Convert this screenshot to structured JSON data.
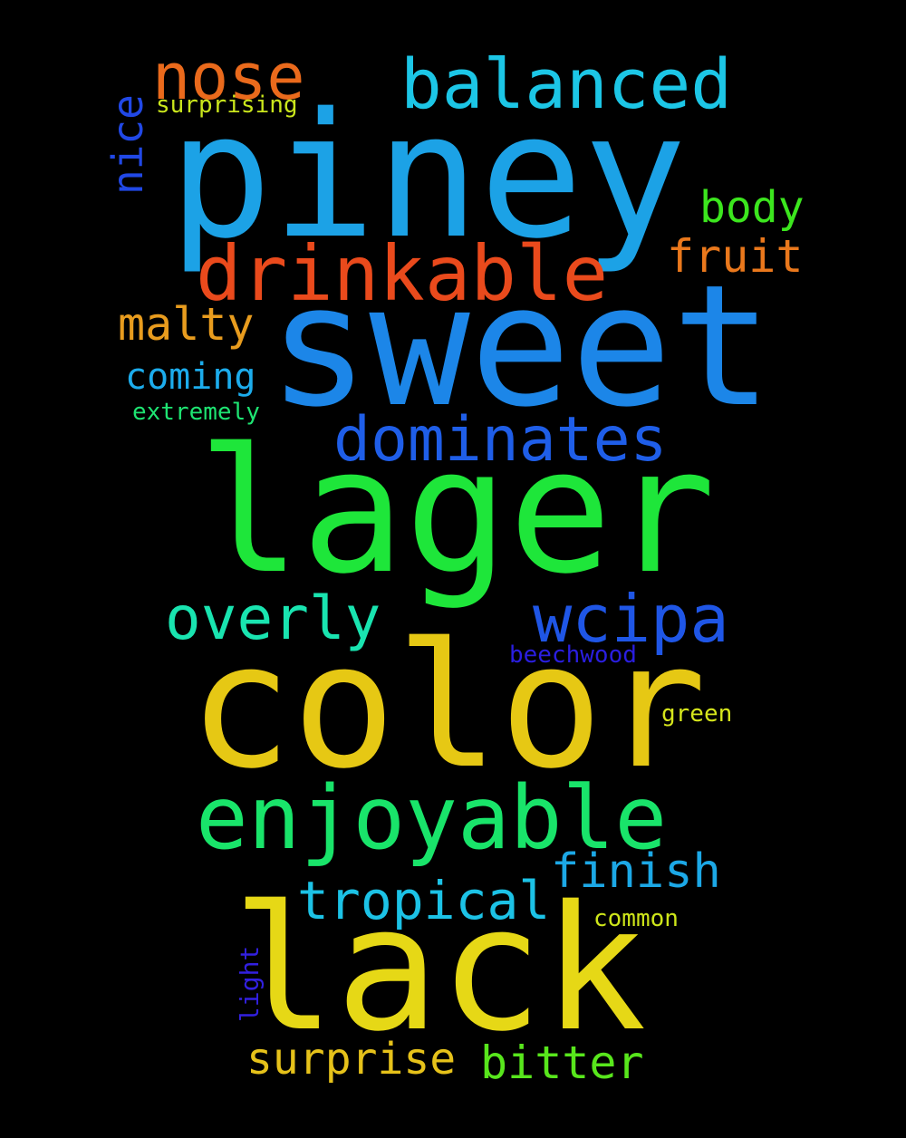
{
  "background_color": "#000000",
  "words": [
    {
      "text": "piney",
      "color": "#1ca2e6"
    },
    {
      "text": "sweet",
      "color": "#1c86e8"
    },
    {
      "text": "lager",
      "color": "#1ee63a"
    },
    {
      "text": "color",
      "color": "#e6c814"
    },
    {
      "text": "lack",
      "color": "#e6d816"
    },
    {
      "text": "enjoyable",
      "color": "#19e46a"
    },
    {
      "text": "drinkable",
      "color": "#ea4a1c"
    },
    {
      "text": "dominates",
      "color": "#1f5ee8"
    },
    {
      "text": "balanced",
      "color": "#1cc6e6"
    },
    {
      "text": "nose",
      "color": "#ea6a1c"
    },
    {
      "text": "wcipa",
      "color": "#1f56e6"
    },
    {
      "text": "overly",
      "color": "#19e4b0"
    },
    {
      "text": "finish",
      "color": "#1ca8e6"
    },
    {
      "text": "tropical",
      "color": "#1cc2e6"
    },
    {
      "text": "body",
      "color": "#3ce61e"
    },
    {
      "text": "fruit",
      "color": "#ea781c"
    },
    {
      "text": "malty",
      "color": "#e89c1e"
    },
    {
      "text": "coming",
      "color": "#1cacec"
    },
    {
      "text": "surprise",
      "color": "#e6c21a"
    },
    {
      "text": "bitter",
      "color": "#58e61c"
    },
    {
      "text": "nice",
      "color": "#2148e6"
    },
    {
      "text": "surprising",
      "color": "#cae61c"
    },
    {
      "text": "extremely",
      "color": "#1ee472"
    },
    {
      "text": "beechwood",
      "color": "#2a1ee0"
    },
    {
      "text": "green",
      "color": "#d6e61c"
    },
    {
      "text": "common",
      "color": "#cee61a"
    },
    {
      "text": "light",
      "color": "#3220e0"
    }
  ]
}
